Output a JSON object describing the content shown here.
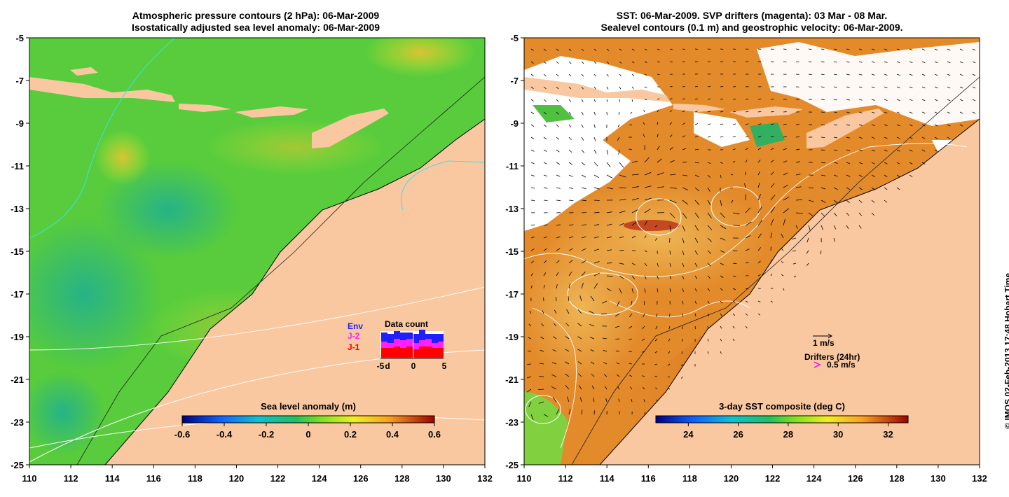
{
  "left_panel": {
    "title_line1": "Atmospheric pressure contours (2 hPa): 06-Mar-2009",
    "title_line2": "Isostatically adjusted sea level anomaly: 06-Mar-2009",
    "colorbar": {
      "label": "Sea level anomaly (m)",
      "ticks": [
        "-0.6",
        "-0.4",
        "-0.2",
        "0",
        "0.2",
        "0.4",
        "0.6"
      ],
      "min": -0.6,
      "max": 0.6
    },
    "data_count": {
      "title": "Data count",
      "legend": [
        {
          "label": "Env",
          "color": "#2020ff"
        },
        {
          "label": "J-2",
          "color": "#ff20ff"
        },
        {
          "label": "J-1",
          "color": "#ff0000"
        }
      ],
      "axis_ticks": [
        "-5",
        "d",
        "0",
        "5"
      ]
    }
  },
  "right_panel": {
    "title_line1": "SST: 06-Mar-2009. SVP drifters (magenta): 03 Mar - 08 Mar.",
    "title_line2": "Sealevel contours (0.1 m) and geostrophic velocity: 06-Mar-2009.",
    "colorbar": {
      "label": "3-day SST composite (deg C)",
      "ticks": [
        "24",
        "26",
        "28",
        "30",
        "32"
      ],
      "min": 22.7,
      "max": 32.8
    },
    "velocity_scale": {
      "label": "1 m/s"
    },
    "drifters": {
      "title": "Drifters (24hr)",
      "scale": "0.5 m/s",
      "color": "#ff00ff"
    }
  },
  "axes": {
    "y_ticks": [
      "-5",
      "-7",
      "-9",
      "-11",
      "-13",
      "-15",
      "-17",
      "-19",
      "-21",
      "-23",
      "-25"
    ],
    "x_ticks": [
      "110",
      "112",
      "114",
      "116",
      "118",
      "120",
      "122",
      "124",
      "126",
      "128",
      "130",
      "132"
    ],
    "lon_range": [
      110,
      132
    ],
    "lat_range": [
      -25,
      -5
    ]
  },
  "colors": {
    "land": "#f9c8a0",
    "ocean_sla": "#55d040",
    "ocean_sst": "#e38a2a",
    "sst_hot": "#b01c08",
    "cloud": "#ffffff"
  },
  "credit": "© IMOS 02-Feb-2013 17:48 Hobart Time"
}
